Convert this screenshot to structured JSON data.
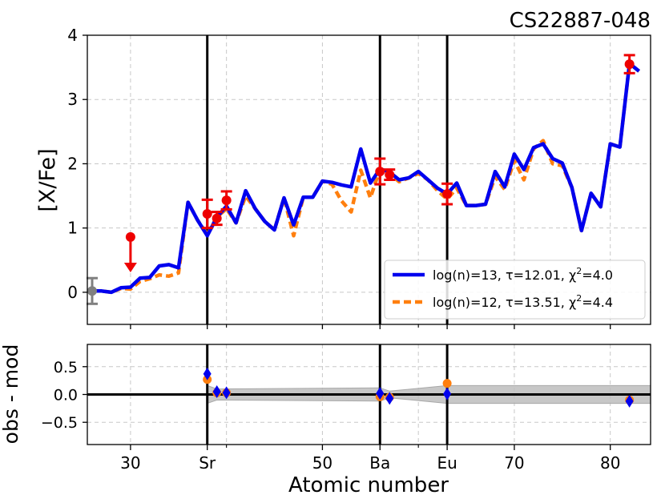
{
  "chart_data": [
    {
      "type": "line",
      "title": "CS22887-048",
      "xlabel": "",
      "ylabel": "[X/Fe]",
      "xlim": [
        25.5,
        84.2
      ],
      "ylim": [
        -0.5,
        4.0
      ],
      "yticks": [
        0,
        1,
        2,
        3,
        4
      ],
      "grid": true,
      "legend_position": "lower-right",
      "vlines": [
        38,
        56,
        63
      ],
      "series": [
        {
          "name": "log(n)=13, τ=12.01, χ²=4.0",
          "legend_text": "log(n)=13, τ=12.01, χ",
          "legend_sup": "2",
          "legend_tail": "=4.0",
          "color": "#0000ee",
          "style": "solid",
          "x": [
            26,
            27,
            28,
            29,
            30,
            31,
            32,
            33,
            34,
            35,
            36,
            37,
            38,
            39,
            40,
            41,
            42,
            43,
            44,
            45,
            46,
            47,
            48,
            49,
            50,
            51,
            52,
            53,
            54,
            55,
            56,
            57,
            58,
            59,
            60,
            61,
            62,
            63,
            64,
            65,
            66,
            67,
            68,
            69,
            70,
            71,
            72,
            73,
            74,
            75,
            76,
            77,
            78,
            79,
            80,
            81,
            82,
            83
          ],
          "y": [
            0.02,
            0.02,
            0.0,
            0.07,
            0.08,
            0.22,
            0.23,
            0.41,
            0.43,
            0.38,
            1.4,
            1.12,
            0.88,
            1.17,
            1.34,
            1.08,
            1.58,
            1.3,
            1.1,
            0.97,
            1.47,
            1.05,
            1.48,
            1.48,
            1.73,
            1.71,
            1.67,
            1.64,
            2.23,
            1.7,
            1.92,
            1.87,
            1.75,
            1.78,
            1.88,
            1.75,
            1.62,
            1.53,
            1.7,
            1.35,
            1.35,
            1.37,
            1.88,
            1.64,
            2.15,
            1.91,
            2.25,
            2.31,
            2.08,
            2.01,
            1.63,
            0.96,
            1.54,
            1.33,
            2.31,
            2.26,
            3.56,
            3.44
          ]
        },
        {
          "name": "log(n)=12, τ=13.51, χ²=4.4",
          "legend_text": "log(n)=12, τ=13.51, χ",
          "legend_sup": "2",
          "legend_tail": "=4.4",
          "color": "#ff7f0e",
          "style": "dashed",
          "x": [
            26,
            27,
            28,
            29,
            30,
            31,
            32,
            33,
            34,
            35,
            36,
            37,
            38,
            39,
            40,
            41,
            42,
            43,
            44,
            45,
            46,
            47,
            48,
            49,
            50,
            51,
            52,
            53,
            54,
            55,
            56,
            57,
            58,
            59,
            60,
            61,
            62,
            63,
            64,
            65,
            66,
            67,
            68,
            69,
            70,
            71,
            72,
            73,
            74,
            75,
            76,
            77,
            78,
            79,
            80,
            81,
            82,
            83
          ],
          "y": [
            0.02,
            0.02,
            0.0,
            0.06,
            0.05,
            0.17,
            0.21,
            0.27,
            0.25,
            0.3,
            1.4,
            1.12,
            0.9,
            1.17,
            1.3,
            1.08,
            1.5,
            1.3,
            1.1,
            0.97,
            1.47,
            0.88,
            1.48,
            1.48,
            1.73,
            1.68,
            1.42,
            1.25,
            1.9,
            1.47,
            1.92,
            1.85,
            1.72,
            1.78,
            1.85,
            1.75,
            1.58,
            1.45,
            1.62,
            1.35,
            1.35,
            1.37,
            1.8,
            1.6,
            2.05,
            1.75,
            2.23,
            2.36,
            2.0,
            1.97,
            1.63,
            0.96,
            1.54,
            1.33,
            2.31,
            2.26,
            3.56,
            3.44
          ]
        }
      ],
      "observations": [
        {
          "x": 26,
          "y": 0.02,
          "err": 0.2,
          "color": "#808080"
        },
        {
          "x": 38,
          "y": 1.22,
          "err": 0.22,
          "color": "#ee0000"
        },
        {
          "x": 39,
          "y": 1.15,
          "err": 0.1,
          "color": "#ee0000"
        },
        {
          "x": 40,
          "y": 1.43,
          "err": 0.14,
          "color": "#ee0000"
        },
        {
          "x": 56,
          "y": 1.88,
          "err": 0.2,
          "color": "#ee0000"
        },
        {
          "x": 57,
          "y": 1.83,
          "err": 0.08,
          "color": "#ee0000"
        },
        {
          "x": 63,
          "y": 1.53,
          "err": 0.16,
          "color": "#ee0000"
        },
        {
          "x": 82,
          "y": 3.55,
          "err": 0.14,
          "color": "#ee0000"
        }
      ],
      "upper_limits": [
        {
          "x": 30,
          "y": 0.86,
          "color": "#ee0000"
        }
      ]
    },
    {
      "type": "scatter",
      "title": "",
      "xlabel": "Atomic number",
      "ylabel": "obs - mod",
      "xlim": [
        25.5,
        84.2
      ],
      "ylim": [
        -0.9,
        0.9
      ],
      "yticks": [
        -0.5,
        0.0,
        0.5
      ],
      "ytick_labels": [
        "−0.5",
        "0.0",
        "0.5"
      ],
      "xticks": [
        30,
        38,
        50,
        56,
        63,
        70,
        80
      ],
      "xtick_labels": [
        "30",
        "Sr",
        "50",
        "Ba",
        "Eu",
        "70",
        "80"
      ],
      "minor_xticks": [
        40,
        60
      ],
      "grid": true,
      "vlines": [
        38,
        56,
        63
      ],
      "uncertainty_band": {
        "x": [
          38,
          39,
          56,
          57,
          63,
          84.2
        ],
        "lower": [
          -0.16,
          -0.1,
          -0.12,
          -0.06,
          -0.16,
          -0.16
        ],
        "upper": [
          0.16,
          0.1,
          0.12,
          0.06,
          0.16,
          0.16
        ],
        "color": "#bdbdbd"
      },
      "series": [
        {
          "marker": "circle",
          "color": "#ff7f0e",
          "x": [
            38,
            39,
            40,
            56,
            57,
            63,
            82
          ],
          "y": [
            0.27,
            0.03,
            0.03,
            -0.04,
            -0.05,
            0.2,
            -0.1
          ]
        },
        {
          "marker": "diamond",
          "color": "#0000ee",
          "x": [
            38,
            39,
            40,
            56,
            57,
            63,
            82
          ],
          "y": [
            0.37,
            0.05,
            0.03,
            0.02,
            -0.07,
            0.01,
            -0.12
          ]
        }
      ]
    }
  ]
}
